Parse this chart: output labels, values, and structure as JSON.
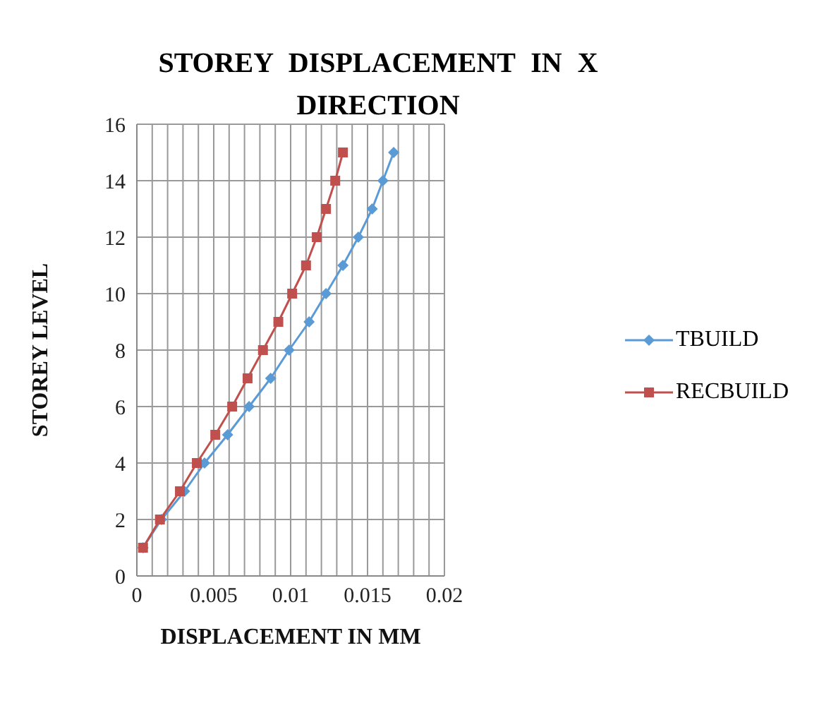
{
  "chart_data": {
    "type": "line",
    "title": "STOREY DISPLACEMENT IN X DIRECTION",
    "xlabel": "DISPLACEMENT IN MM",
    "ylabel": "STOREY LEVEL",
    "xlim": [
      0,
      0.02
    ],
    "xticks": [
      0,
      {
        "value": 0.001,
        "label": null
      },
      {
        "value": 0.002,
        "label": null
      },
      {
        "value": 0.003,
        "label": null
      },
      {
        "value": 0.004,
        "label": null
      },
      0.005,
      {
        "value": 0.006,
        "label": null
      },
      {
        "value": 0.007,
        "label": null
      },
      {
        "value": 0.008,
        "label": null
      },
      {
        "value": 0.009,
        "label": null
      },
      0.01,
      {
        "value": 0.011,
        "label": null
      },
      {
        "value": 0.012,
        "label": null
      },
      {
        "value": 0.013,
        "label": null
      },
      {
        "value": 0.014,
        "label": null
      },
      0.015,
      {
        "value": 0.016,
        "label": null
      },
      {
        "value": 0.017,
        "label": null
      },
      {
        "value": 0.018,
        "label": null
      },
      {
        "value": 0.019,
        "label": null
      },
      0.02
    ],
    "ylim": [
      0,
      16
    ],
    "yticks": [
      0,
      2,
      4,
      6,
      8,
      10,
      12,
      14,
      16
    ],
    "grid": true,
    "legend": "right",
    "line_style": "solid",
    "series": [
      {
        "name": "TBUILD",
        "color": "#5b9bd5",
        "marker": "diamond",
        "x": [
          0.0004,
          0.0016,
          0.0031,
          0.0044,
          0.0059,
          0.0073,
          0.0087,
          0.0099,
          0.0112,
          0.0123,
          0.0134,
          0.0144,
          0.0153,
          0.016,
          0.0167
        ],
        "values": [
          1,
          2,
          3,
          4,
          5,
          6,
          7,
          8,
          9,
          10,
          11,
          12,
          13,
          14,
          15
        ]
      },
      {
        "name": "RECBUILD",
        "color": "#c0504d",
        "marker": "square",
        "x": [
          0.0004,
          0.0015,
          0.0028,
          0.0039,
          0.0051,
          0.0062,
          0.0072,
          0.0082,
          0.0092,
          0.0101,
          0.011,
          0.0117,
          0.0123,
          0.0129,
          0.0134
        ],
        "values": [
          1,
          2,
          3,
          4,
          5,
          6,
          7,
          8,
          9,
          10,
          11,
          12,
          13,
          14,
          15
        ]
      }
    ]
  }
}
